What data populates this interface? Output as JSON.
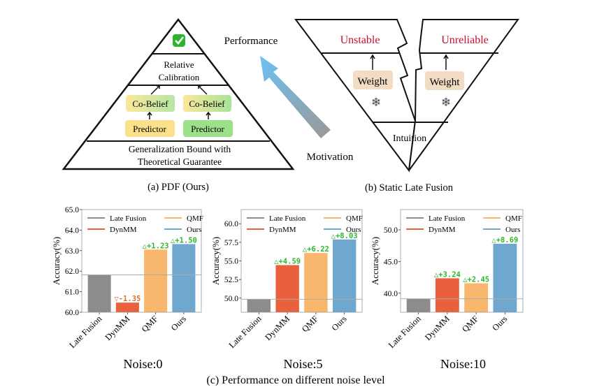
{
  "panel_a": {
    "top_icon": "check-mark-icon",
    "relative_line1": "Relative",
    "relative_line2": "Calibration",
    "co_belief_left": "Co-Belief",
    "co_belief_right": "Co-Belief",
    "predictor_left": "Predictor",
    "predictor_right": "Predictor",
    "base_line1": "Generalization Bound with",
    "base_line2": "Theoretical Guarantee",
    "caption": "(a) PDF (Ours)"
  },
  "arrow": {
    "top_label": "Performance",
    "bottom_label": "Motivation"
  },
  "panel_b": {
    "left_top": "Unstable",
    "right_top": "Unreliable",
    "weight_left": "Weight",
    "weight_right": "Weight",
    "freeze_icon": "snowflake-icon",
    "bottom": "Intuition",
    "caption": "(b) Static Late Fusion"
  },
  "colors": {
    "late_fusion": "#8c8c8c",
    "dynmm": "#e8603c",
    "qmf": "#f8b76c",
    "ours": "#6fa7cf",
    "gain": "#2db82d",
    "loss": "#e0702a",
    "warning_red": "#c8102e"
  },
  "caption_c": "(c) Performance on different noise level",
  "chart_data": [
    {
      "type": "bar",
      "title": "Noise:0",
      "ylabel": "Accuracy(%)",
      "categories": [
        "Late Fusion",
        "DynMM",
        "QMF",
        "Ours"
      ],
      "values": [
        61.82,
        60.47,
        63.05,
        63.32
      ],
      "annotations": [
        "",
        "▽-1.35",
        "△+1.23",
        "△+1.50"
      ],
      "yticks": [
        "60.0",
        "61.0",
        "62.0",
        "63.0",
        "64.0",
        "65.0"
      ],
      "ylim": [
        60.0,
        65.0
      ],
      "reference_line": 61.82,
      "legend": [
        "Late Fusion",
        "DynMM",
        "QMF",
        "Ours"
      ],
      "legend_placement": "top"
    },
    {
      "type": "bar",
      "title": "Noise:5",
      "ylabel": "Accuracy(%)",
      "categories": [
        "Late Fusion",
        "DynMM",
        "QMF",
        "Ours"
      ],
      "values": [
        49.85,
        54.44,
        56.07,
        57.88
      ],
      "annotations": [
        "",
        "△+4.59",
        "△+6.22",
        "△+8.03"
      ],
      "yticks": [
        "50.0",
        "52.5",
        "55.0",
        "57.5",
        "60.0"
      ],
      "ylim": [
        48.1,
        61.9
      ],
      "reference_line": 49.85,
      "legend": [
        "Late Fusion",
        "DynMM",
        "QMF",
        "Ours"
      ],
      "legend_placement": "top"
    },
    {
      "type": "bar",
      "title": "Noise:10",
      "ylabel": "Accuracy(%)",
      "categories": [
        "Late Fusion",
        "DynMM",
        "QMF",
        "Ours"
      ],
      "values": [
        39.12,
        42.36,
        41.57,
        47.81
      ],
      "annotations": [
        "",
        "△+3.24",
        "△+2.45",
        "△+8.69"
      ],
      "yticks": [
        "40.0",
        "45.0",
        "50.0"
      ],
      "ylim": [
        37.0,
        53.2
      ],
      "reference_line": 39.12,
      "legend": [
        "Late Fusion",
        "DynMM",
        "QMF",
        "Ours"
      ],
      "legend_placement": "top"
    }
  ]
}
